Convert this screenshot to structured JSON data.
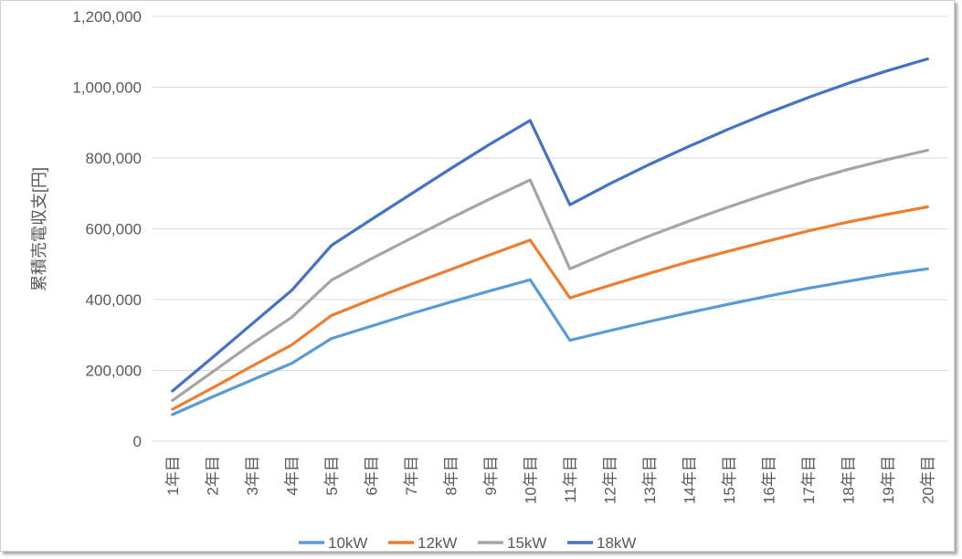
{
  "chart_data": {
    "type": "line",
    "ylabel": "累積売電収支[円]",
    "ylim": [
      0,
      1200000
    ],
    "yticks": [
      0,
      200000,
      400000,
      600000,
      800000,
      1000000,
      1200000
    ],
    "ytick_labels": [
      "0",
      "200,000",
      "400,000",
      "600,000",
      "800,000",
      "1,000,000",
      "1,200,000"
    ],
    "categories": [
      "1年目",
      "2年目",
      "3年目",
      "4年目",
      "5年目",
      "6年目",
      "7年目",
      "8年目",
      "9年目",
      "10年目",
      "11年目",
      "12年目",
      "13年目",
      "14年目",
      "15年目",
      "16年目",
      "17年目",
      "18年目",
      "19年目",
      "20年目"
    ],
    "grid": true,
    "legend": "bottom",
    "series": [
      {
        "name": "10kW",
        "color": "#5b9bd5",
        "values": [
          75000,
          125000,
          173000,
          220000,
          290000,
          325000,
          360000,
          393000,
          425000,
          456000,
          285000,
          312000,
          338000,
          363000,
          387000,
          410000,
          432000,
          452000,
          471000,
          487000
        ]
      },
      {
        "name": "12kW",
        "color": "#ed7d31",
        "values": [
          90000,
          150000,
          212000,
          272000,
          355000,
          400000,
          443000,
          485000,
          527000,
          568000,
          405000,
          440000,
          474000,
          507000,
          537000,
          566000,
          594000,
          619000,
          641000,
          662000
        ]
      },
      {
        "name": "15kW",
        "color": "#a5a5a5",
        "values": [
          115000,
          195000,
          275000,
          350000,
          455000,
          515000,
          573000,
          630000,
          685000,
          738000,
          487000,
          535000,
          580000,
          622000,
          662000,
          700000,
          736000,
          768000,
          796000,
          822000
        ]
      },
      {
        "name": "18kW",
        "color": "#4472c4",
        "values": [
          142000,
          236000,
          331000,
          426000,
          553000,
          626000,
          698000,
          770000,
          840000,
          906000,
          668000,
          727000,
          782000,
          833000,
          882000,
          928000,
          971000,
          1011000,
          1047000,
          1080000
        ]
      }
    ]
  }
}
